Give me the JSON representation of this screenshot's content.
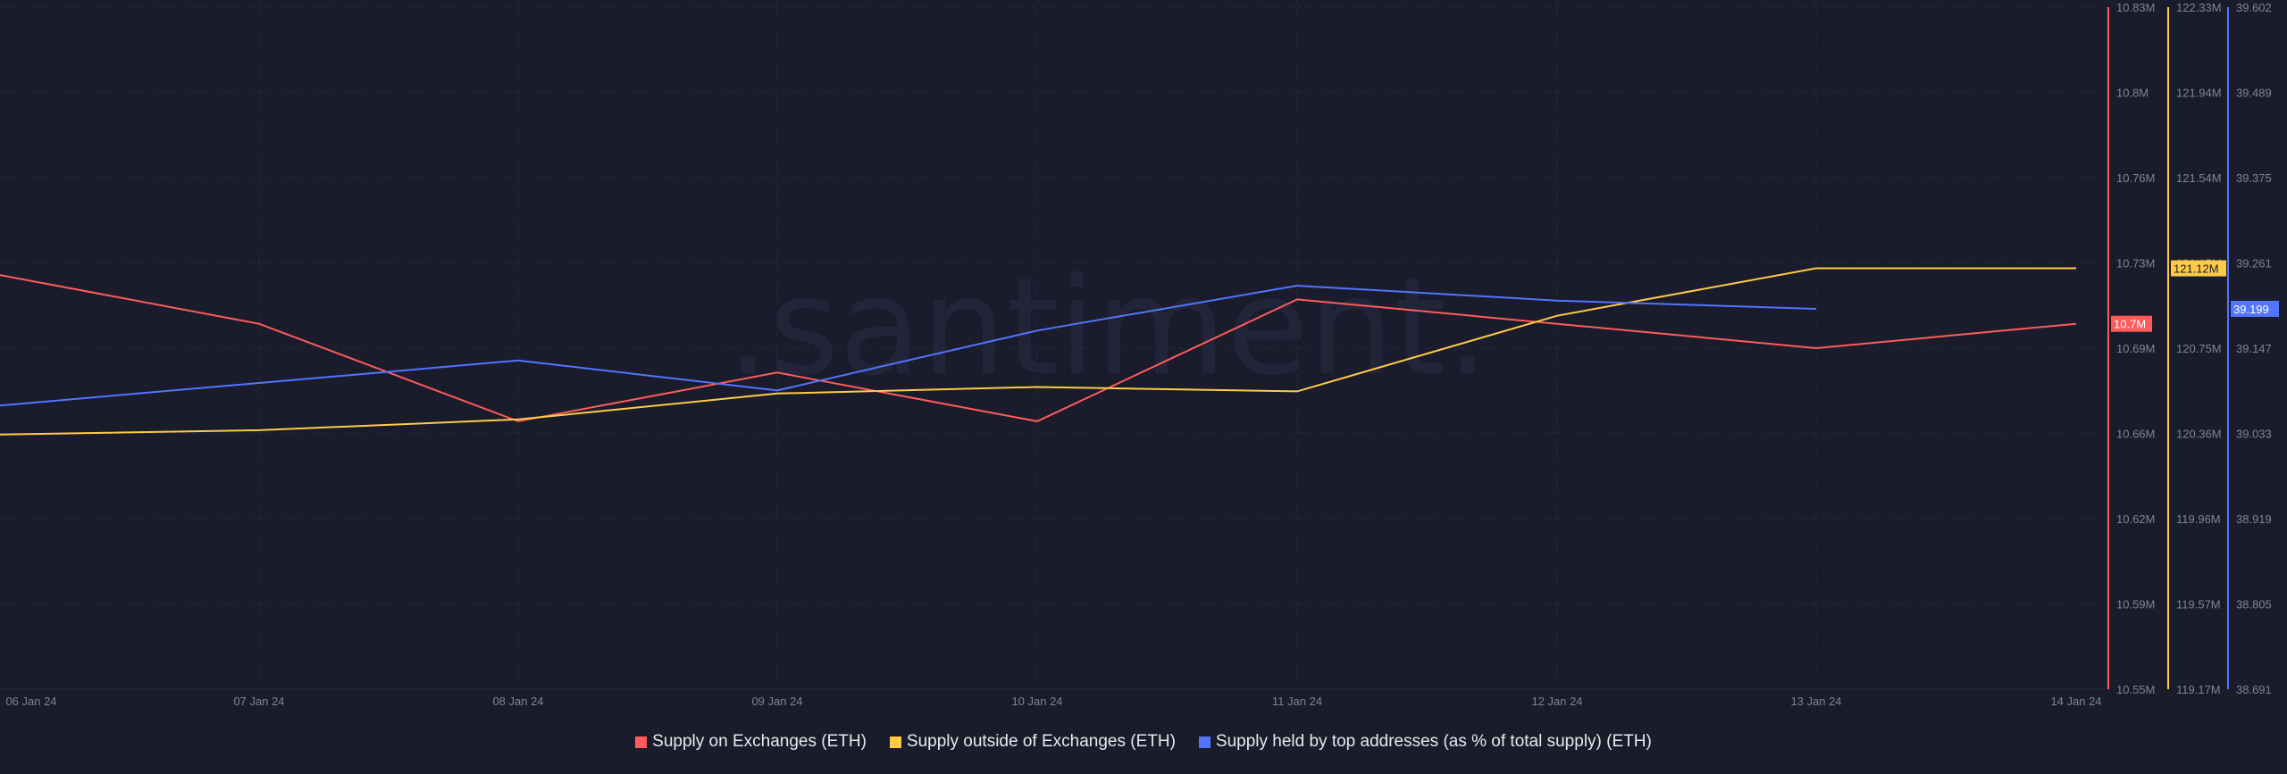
{
  "watermark": ".santiment.",
  "legend": [
    {
      "label": "Supply on Exchanges (ETH)",
      "color": "#ff5b5b"
    },
    {
      "label": "Supply outside of Exchanges (ETH)",
      "color": "#ffcb47"
    },
    {
      "label": "Supply held by top addresses (as % of total supply) (ETH)",
      "color": "#5275ff"
    }
  ],
  "chart_data": {
    "type": "line",
    "title": "",
    "x": [
      "06 Jan 24",
      "07 Jan 24",
      "08 Jan 24",
      "09 Jan 24",
      "10 Jan 24",
      "11 Jan 24",
      "12 Jan 24",
      "13 Jan 24",
      "14 Jan 24"
    ],
    "xlabel": "",
    "grid": true,
    "legend_position": "bottom",
    "series": [
      {
        "name": "Supply on Exchanges (ETH)",
        "color": "#ff5b5b",
        "axis": "y1",
        "unit": "M",
        "values": [
          10.72,
          10.7,
          10.66,
          10.68,
          10.66,
          10.71,
          10.7,
          10.69,
          10.7
        ],
        "current_value_label": "10.7M"
      },
      {
        "name": "Supply outside of Exchanges (ETH)",
        "color": "#ffcb47",
        "axis": "y2",
        "unit": "M",
        "values": [
          120.35,
          120.37,
          120.42,
          120.54,
          120.57,
          120.55,
          120.9,
          121.12,
          121.12
        ],
        "current_value_label": "121.12M"
      },
      {
        "name": "Supply held by top addresses (as % of total supply) (ETH)",
        "color": "#5275ff",
        "axis": "y3",
        "unit": "%",
        "values": [
          39.07,
          39.1,
          39.13,
          39.09,
          39.17,
          39.23,
          39.21,
          39.199,
          null
        ],
        "current_value_label": "39.199"
      }
    ],
    "axes": {
      "y1": {
        "ticks": [
          "10.83M",
          "10.8M",
          "10.76M",
          "10.73M",
          "10.69M",
          "10.66M",
          "10.62M",
          "10.59M",
          "10.55M"
        ],
        "ylim": [
          10.55,
          10.83
        ],
        "color": "#ff5b5b"
      },
      "y2": {
        "ticks": [
          "122.33M",
          "121.94M",
          "121.54M",
          "121.15M",
          "120.75M",
          "120.36M",
          "119.96M",
          "119.57M",
          "119.17M"
        ],
        "ylim": [
          119.17,
          122.33
        ],
        "color": "#ffcb47"
      },
      "y3": {
        "ticks": [
          "39.602",
          "39.489",
          "39.375",
          "39.261",
          "39.147",
          "39.033",
          "38.919",
          "38.805",
          "38.691"
        ],
        "ylim": [
          38.691,
          39.602
        ],
        "color": "#5275ff"
      }
    }
  }
}
